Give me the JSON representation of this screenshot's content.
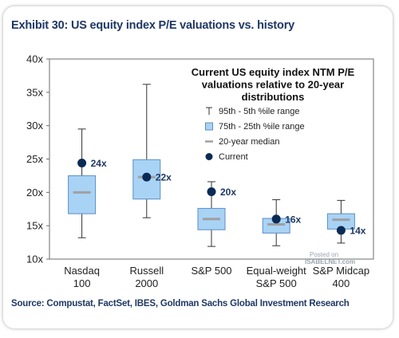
{
  "title": "Exhibit 30: US equity index P/E valuations vs. history",
  "source": "Source: Compustat, FactSet, IBES, Goldman Sachs Global Investment Research",
  "watermark": {
    "line1": "Posted on",
    "line2": "ISABELNET.com"
  },
  "colors": {
    "box_fill": "#a9d3f5",
    "box_stroke": "#5b8fc4",
    "median": "#a0a0a0",
    "current": "#0b2a55",
    "whisker": "#333333"
  },
  "chart_data": {
    "type": "box",
    "title": "Current US equity index NTM P/E valuations relative to 20-year distributions",
    "title_lines": [
      "Current US equity index NTM P/E",
      "valuations relative to 20-year",
      "distributions"
    ],
    "ylim": [
      10,
      40
    ],
    "yticks": [
      10,
      15,
      20,
      25,
      30,
      35,
      40
    ],
    "ytick_labels": [
      "10x",
      "15x",
      "20x",
      "25x",
      "30x",
      "35x",
      "40x"
    ],
    "grid": false,
    "legend": {
      "position": "top-right",
      "items": [
        {
          "symbol": "T",
          "label": "95th - 5th %ile range"
        },
        {
          "symbol": "box",
          "label": "75th - 25th %ile range"
        },
        {
          "symbol": "dash",
          "label": "20-year median"
        },
        {
          "symbol": "dot",
          "label": "Current"
        }
      ]
    },
    "categories": [
      {
        "lines": [
          "Nasdaq",
          "100"
        ],
        "p5": 13.2,
        "p25": 16.8,
        "median": 20.0,
        "p75": 22.5,
        "p95": 29.5,
        "current": 24.4,
        "current_label": "24x"
      },
      {
        "lines": [
          "Russell",
          "2000"
        ],
        "p5": 16.2,
        "p25": 19.0,
        "median": 22.3,
        "p75": 24.9,
        "p95": 36.2,
        "current": 22.3,
        "current_label": "22x"
      },
      {
        "lines": [
          "S&P 500"
        ],
        "p5": 11.9,
        "p25": 14.4,
        "median": 16.0,
        "p75": 17.6,
        "p95": 21.6,
        "current": 20.1,
        "current_label": "20x"
      },
      {
        "lines": [
          "Equal-weight",
          "S&P 500"
        ],
        "p5": 12.0,
        "p25": 13.9,
        "median": 15.2,
        "p75": 16.1,
        "p95": 18.9,
        "current": 16.0,
        "current_label": "16x"
      },
      {
        "lines": [
          "S&P Midcap",
          "400"
        ],
        "p5": 12.4,
        "p25": 14.5,
        "median": 15.9,
        "p75": 16.8,
        "p95": 18.8,
        "current": 14.3,
        "current_label": "14x"
      }
    ]
  }
}
